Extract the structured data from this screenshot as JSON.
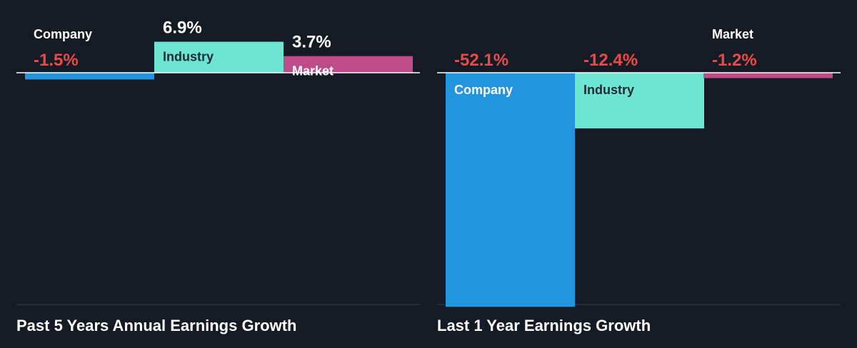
{
  "colors": {
    "background": "#151b24",
    "company": "#2394e0",
    "industry": "#6de5d4",
    "market": "#c04b8a",
    "positive_text": "#ffffff",
    "negative_text": "#e84a4a",
    "label_dark": "#1e2a33",
    "label_light": "#ffffff",
    "axis": "#ffffff",
    "bottom_rule": "#3a414c"
  },
  "chart_data": [
    {
      "type": "bar",
      "title": "Past 5 Years Annual Earnings Growth",
      "categories": [
        "Company",
        "Industry",
        "Market"
      ],
      "values": [
        -1.5,
        6.9,
        3.7
      ],
      "value_labels": [
        "-1.5%",
        "6.9%",
        "3.7%"
      ],
      "ylim": [
        -55,
        10
      ],
      "grid": false
    },
    {
      "type": "bar",
      "title": "Last 1 Year Earnings Growth",
      "categories": [
        "Company",
        "Industry",
        "Market"
      ],
      "values": [
        -52.1,
        -12.4,
        -1.2
      ],
      "value_labels": [
        "-52.1%",
        "-12.4%",
        "-1.2%"
      ],
      "ylim": [
        -55,
        10
      ],
      "grid": false
    }
  ]
}
